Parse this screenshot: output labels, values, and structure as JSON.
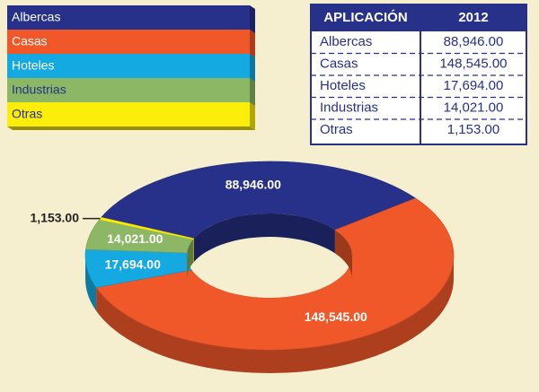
{
  "chart_data": {
    "type": "donut3d",
    "categories": [
      "Albercas",
      "Casas",
      "Hoteles",
      "Industrias",
      "Otras"
    ],
    "values": [
      88946,
      148545,
      17694,
      14021,
      1153
    ],
    "value_labels": [
      "88,946.00",
      "148,545.00",
      "17,694.00",
      "14,021.00",
      "1,153.00"
    ],
    "colors": [
      "#27318a",
      "#f0582a",
      "#14a9e1",
      "#8cb866",
      "#fcee0a"
    ],
    "table_header": [
      "APLICACIÓN",
      "2012"
    ]
  }
}
